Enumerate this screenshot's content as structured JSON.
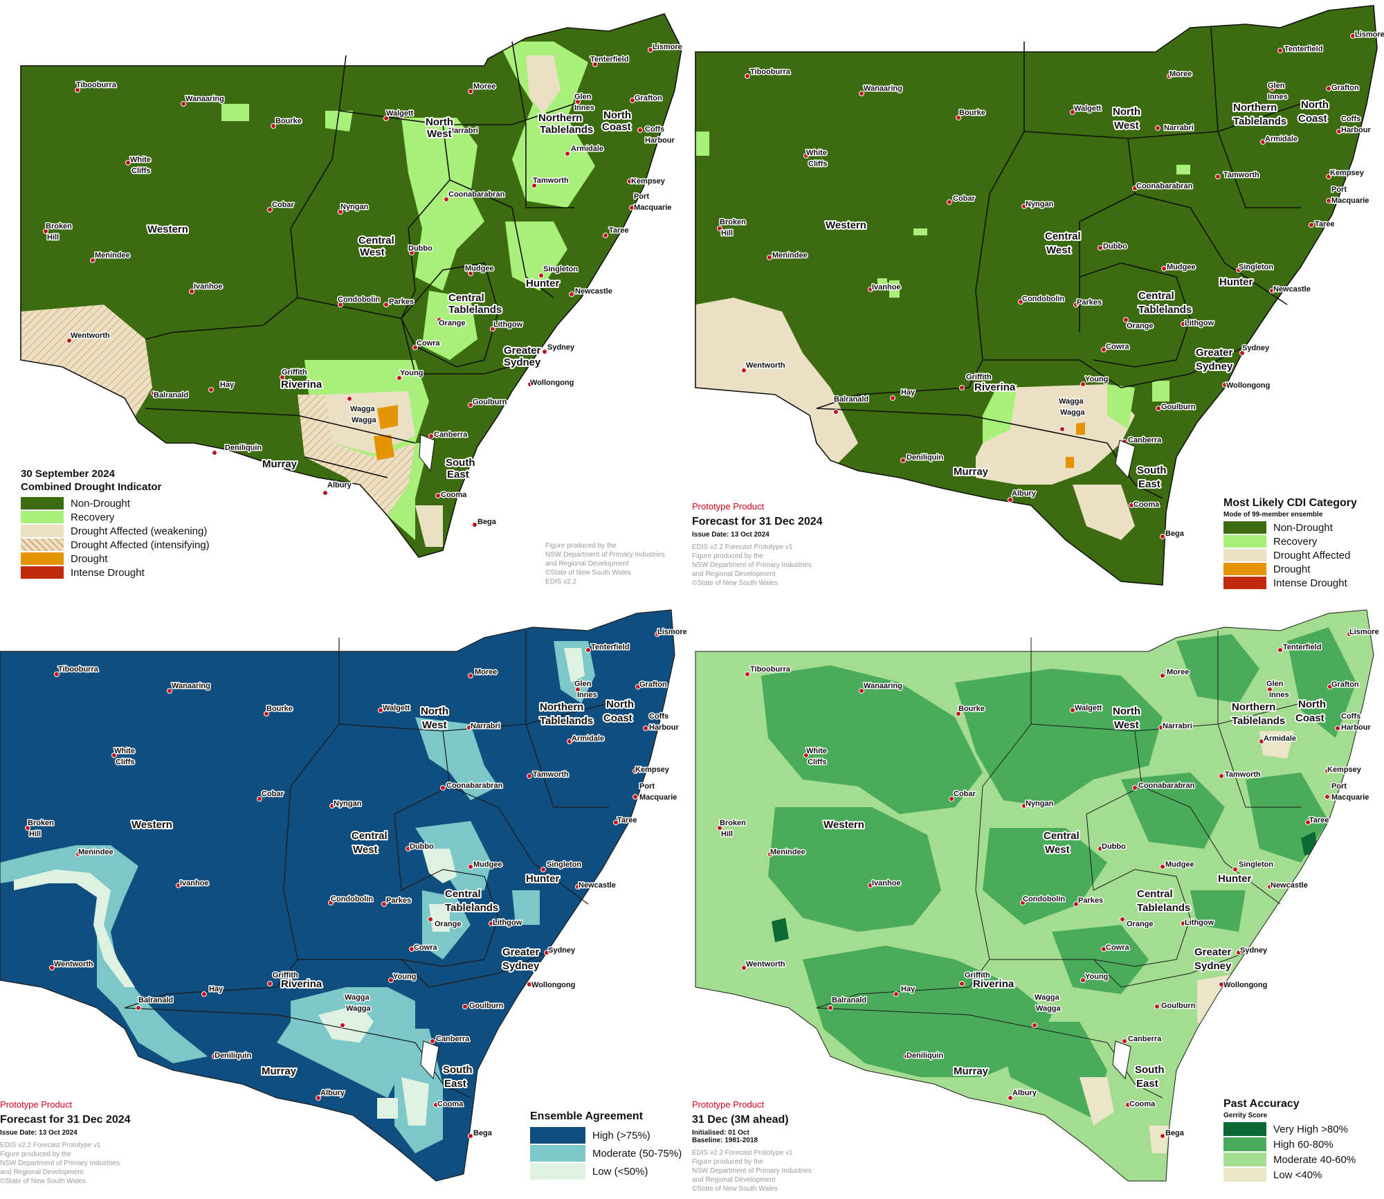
{
  "colors": {
    "non_drought": "#3d6b0f",
    "recovery": "#a8f07a",
    "drought_affected": "#ece0c4",
    "drought": "#e39400",
    "intense_drought": "#c02a0a",
    "agree_high": "#114e80",
    "agree_moderate": "#7cc8c8",
    "agree_low": "#dff2e2",
    "acc_very_high": "#0b6a34",
    "acc_high": "#4aac5a",
    "acc_moderate": "#a4dc92",
    "acc_low": "#ece6c8"
  },
  "towns": {
    "tibooburra": "Tibooburra",
    "wanaaring": "Wanaaring",
    "bourke": "Bourke",
    "white1": "White",
    "white2": "Cliffs",
    "cobar": "Cobar",
    "broken1": "Broken",
    "broken2": "Hill",
    "menindee": "Menindee",
    "ivanhoe": "Ivanhoe",
    "wentworth": "Wentworth",
    "balranald": "Balranald",
    "hay": "Hay",
    "deniliquin": "Deniliquin",
    "albury": "Albury",
    "wagga1": "Wagga",
    "wagga2": "Wagga",
    "griffith": "Griffith",
    "young": "Young",
    "cowra": "Cowra",
    "orange": "Orange",
    "parkes": "Parkes",
    "condobolin": "Condobolin",
    "dubbo": "Dubbo",
    "nyngan": "Nyngan",
    "walgett": "Walgett",
    "moree": "Moree",
    "narrabri": "Narrabri",
    "coonabarabran": "Coonabarabran",
    "tamworth": "Tamworth",
    "armidale": "Armidale",
    "glen1": "Glen",
    "glen2": "Innes",
    "tenterfield": "Tenterfield",
    "lismore": "Lismore",
    "grafton": "Grafton",
    "coffs1": "Coffs",
    "coffs2": "Harbour",
    "kempsey": "Kempsey",
    "port1": "Port",
    "port2": "Macquarie",
    "taree": "Taree",
    "singleton": "Singleton",
    "newcastle": "Newcastle",
    "mudgee": "Mudgee",
    "lithgow": "Lithgow",
    "sydney": "Sydney",
    "wollongong": "Wollongong",
    "goulburn": "Goulburn",
    "canberra": "Canberra",
    "cooma": "Cooma",
    "bega": "Bega"
  },
  "regions": {
    "western": "Western",
    "central1": "Central",
    "central2": "West",
    "northwest1": "North",
    "northwest2": "West",
    "northern1": "Northern",
    "northern2": "Tablelands",
    "northcoast1": "North",
    "northcoast2": "Coast",
    "hunter": "Hunter",
    "centraltab1": "Central",
    "centraltab2": "Tablelands",
    "greater1": "Greater",
    "greater2": "Sydney",
    "riverina": "Riverina",
    "murray": "Murray",
    "southeast1": "South",
    "southeast2": "East"
  },
  "panel1": {
    "title": "30 September 2024",
    "subtitle": "Combined Drought Indicator",
    "legend": [
      "Non-Drought",
      "Recovery",
      "Drought Affected (weakening)",
      "Drought Affected (intensifying)",
      "Drought",
      "Intense Drought"
    ],
    "credit": [
      "Figure produced by the",
      "NSW Department of Primary Industries",
      "and Regional Development",
      "©State of New South Wales",
      "EDIS v2.2"
    ]
  },
  "panel2": {
    "prototype": "Prototype Product",
    "forecast": "Forecast for 31 Dec 2024",
    "issue": "Issue Date: 13 Oct 2024",
    "credit": [
      "EDIS v2.2 Forecast Prototype v1",
      "Figure produced by the",
      "NSW Department of Primary Industries",
      "and Regional Development",
      "©State of New South Wales"
    ],
    "legend_title": "Most Likely CDI Category",
    "legend_sub": "Mode of 99-member ensemble",
    "legend": [
      "Non-Drought",
      "Recovery",
      "Drought Affected",
      "Drought",
      "Intense Drought"
    ]
  },
  "panel3": {
    "prototype": "Prototype Product",
    "forecast": "Forecast for 31 Dec 2024",
    "issue": "Issue Date: 13 Oct 2024",
    "credit": [
      "EDIS v2.2 Forecast Prototype v1",
      "Figure produced by the",
      "NSW Department of Primary Industries",
      "and Regional Development",
      "©State of New South Wales"
    ],
    "legend_title": "Ensemble Agreement",
    "legend": [
      "High (>75%)",
      "Moderate (50-75%)",
      "Low (<50%)"
    ]
  },
  "panel4": {
    "prototype": "Prototype Product",
    "forecast": "31 Dec (3M ahead)",
    "initialised": "Initialised: 01 Oct",
    "baseline": "Baseline: 1981-2018",
    "credit": [
      "EDIS v2.2 Forecast Prototype v1",
      "Figure produced by the",
      "NSW Department of Primary Industries",
      "and Regional Development",
      "©State of New South Wales"
    ],
    "legend_title": "Past Accuracy",
    "legend_sub": "Gerrity Score",
    "legend": [
      "Very High >80%",
      "High 60-80%",
      "Moderate 40-60%",
      "Low <40%"
    ]
  }
}
